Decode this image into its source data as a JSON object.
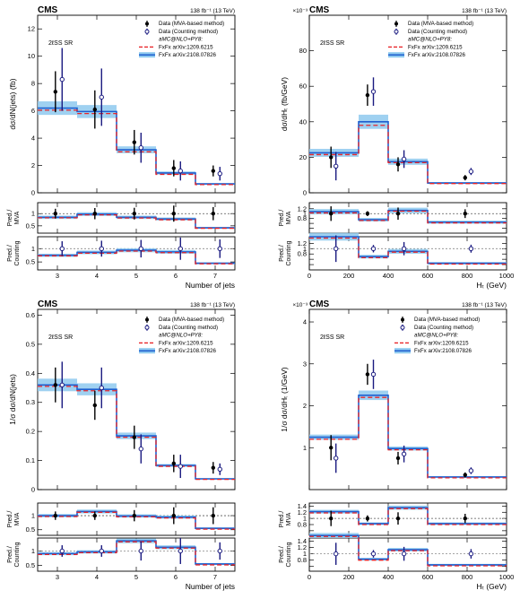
{
  "colors": {
    "mva_marker": "#000000",
    "counting_marker": "#1a1a80",
    "fxfx_2209": "#e8262a",
    "fxfx_2108": "#1f5fcf",
    "fxfx_2108_band": "#8ec9ef",
    "ratio_reference": "#888888"
  },
  "legend": {
    "items": [
      {
        "label": "Data (MVA-based method)",
        "symbol": "filled-circle"
      },
      {
        "label": "Data (Counting method)",
        "symbol": "open-circle"
      },
      {
        "label": "aMC@NLO+PY8:",
        "symbol": "none"
      },
      {
        "label": "FxFx arXiv:1209.6215",
        "symbol": "dashed-line"
      },
      {
        "label": "FxFx arXiv:2108.07826",
        "symbol": "band"
      }
    ]
  },
  "ratio_labels": {
    "mva": "Pred./ MVA",
    "counting": "Pred./ Counting"
  },
  "chart_data": [
    {
      "id": "p1",
      "type": "histogram-with-ratio",
      "cms": "CMS",
      "lumi": "138 fb⁻¹ (13 TeV)",
      "region": "2ℓSS SR",
      "ylabel": "dσ/dN(jets) (fb)",
      "xlabel": "Number of jets",
      "xlim": [
        2.5,
        7.5
      ],
      "ylim": [
        0,
        13
      ],
      "log": false,
      "xticks": [
        3,
        4,
        5,
        6,
        7
      ],
      "xticklabels": [
        "3",
        "4",
        "5",
        "6",
        "7"
      ],
      "yticks": [
        0,
        2,
        4,
        6,
        8,
        10,
        12
      ],
      "yticklabels": [
        "0",
        "2",
        "4",
        "6",
        "8",
        "10",
        "12"
      ],
      "bins": [
        2.5,
        3.5,
        4.5,
        5.5,
        6.5,
        7.5
      ],
      "pred_2209": [
        6.05,
        5.8,
        3.0,
        1.35,
        0.6
      ],
      "pred_2108": [
        6.2,
        5.95,
        3.15,
        1.45,
        0.65
      ],
      "band_rel": 0.08,
      "data_mva": {
        "x": [
          2.95,
          3.95,
          4.95,
          5.95,
          6.95
        ],
        "y": [
          7.4,
          6.1,
          3.7,
          1.8,
          1.6
        ],
        "err": [
          1.5,
          1.4,
          0.9,
          0.6,
          0.4
        ]
      },
      "data_counting": {
        "x": [
          3.12,
          4.12,
          5.12,
          6.12,
          7.12
        ],
        "y": [
          8.3,
          7.0,
          3.3,
          1.6,
          1.4
        ],
        "err": [
          2.3,
          2.1,
          1.1,
          0.7,
          0.5
        ]
      },
      "ratio_mva": {
        "ylim": [
          0.2,
          1.45
        ],
        "ticks": [
          0.5,
          1
        ],
        "ticklabels": [
          "0.5",
          "1"
        ],
        "pred_2209": [
          0.83,
          0.95,
          0.82,
          0.75,
          0.4
        ],
        "pred_2108": [
          0.85,
          0.98,
          0.85,
          0.78,
          0.42
        ],
        "data_y": [
          1.0,
          1.0,
          1.0,
          1.0,
          1.0
        ],
        "data_err": [
          0.2,
          0.23,
          0.24,
          0.33,
          0.27
        ]
      },
      "ratio_counting": {
        "ylim": [
          0.2,
          1.45
        ],
        "ticks": [
          0.5,
          1
        ],
        "ticklabels": [
          "0.5",
          "1"
        ],
        "pred_2209": [
          0.73,
          0.83,
          0.91,
          0.85,
          0.43
        ],
        "pred_2108": [
          0.75,
          0.86,
          0.94,
          0.88,
          0.45
        ],
        "data_y": [
          1.0,
          1.0,
          1.0,
          1.0,
          1.0
        ],
        "data_err": [
          0.28,
          0.3,
          0.33,
          0.42,
          0.35
        ]
      }
    },
    {
      "id": "p2",
      "type": "histogram-with-ratio",
      "cms": "CMS",
      "lumi": "138 fb⁻¹ (13 TeV)",
      "exponent": "×10⁻³",
      "region": "2ℓSS SR",
      "ylabel": "dσ/dHₜ (fb/GeV)",
      "xlabel": "Hₜ (GeV)",
      "xlim": [
        0,
        1000
      ],
      "ylim": [
        0,
        100
      ],
      "log": false,
      "xticks": [
        0,
        200,
        400,
        600,
        800,
        1000
      ],
      "xticklabels": [
        "0",
        "200",
        "400",
        "600",
        "800",
        "1000"
      ],
      "yticks": [
        0,
        20,
        40,
        60,
        80
      ],
      "yticklabels": [
        "0",
        "20",
        "40",
        "60",
        "80"
      ],
      "bins": [
        0,
        250,
        400,
        600,
        1000
      ],
      "pred_2209": [
        21.5,
        38.0,
        17.0,
        5.2
      ],
      "pred_2108": [
        22.5,
        40.0,
        17.5,
        5.5
      ],
      "band_rel": 0.1,
      "data_mva": {
        "x": [
          110,
          295,
          450,
          790
        ],
        "y": [
          20.0,
          55.0,
          16.0,
          8.5
        ],
        "err": [
          6,
          6,
          4,
          1.5
        ]
      },
      "data_counting": {
        "x": [
          135,
          325,
          480,
          820
        ],
        "y": [
          15.0,
          57.0,
          19.0,
          12.0
        ],
        "err": [
          8,
          8,
          5,
          2
        ]
      },
      "ratio_mva": {
        "ylim": [
          0.2,
          1.45
        ],
        "ticks": [
          0.4,
          0.6,
          0.8,
          1,
          1.2
        ],
        "ticklabels": [
          "",
          "",
          "0.8",
          "1",
          "1.2"
        ],
        "pred_2209": [
          1.03,
          0.72,
          1.1,
          0.62
        ],
        "pred_2108": [
          1.08,
          0.75,
          1.13,
          0.65
        ],
        "data_y": [
          1.0,
          1.0,
          1.0,
          1.0
        ],
        "data_err": [
          0.3,
          0.1,
          0.25,
          0.18
        ]
      },
      "ratio_counting": {
        "ylim": [
          0.2,
          1.45
        ],
        "ticks": [
          0.4,
          0.6,
          0.8,
          1,
          1.2
        ],
        "ticklabels": [
          "",
          "",
          "0.8",
          "1",
          "1.2"
        ],
        "pred_2209": [
          1.4,
          0.66,
          0.87,
          0.42
        ],
        "pred_2108": [
          1.45,
          0.7,
          0.9,
          0.45
        ],
        "data_y": [
          1.0,
          1.0,
          1.0,
          1.0
        ],
        "data_err": [
          0.5,
          0.14,
          0.25,
          0.15
        ]
      }
    },
    {
      "id": "p3",
      "type": "histogram-with-ratio",
      "cms": "CMS",
      "lumi": "138 fb⁻¹ (13 TeV)",
      "region": "2ℓSS SR",
      "ylabel": "1/σ dσ/dN(jets)",
      "xlabel": "Number of jets",
      "xlim": [
        2.5,
        7.5
      ],
      "ylim": [
        0,
        0.62
      ],
      "log": false,
      "xticks": [
        3,
        4,
        5,
        6,
        7
      ],
      "xticklabels": [
        "3",
        "4",
        "5",
        "6",
        "7"
      ],
      "yticks": [
        0,
        0.1,
        0.2,
        0.3,
        0.4,
        0.5,
        0.6
      ],
      "yticklabels": [
        "0",
        "0.1",
        "0.2",
        "0.3",
        "0.4",
        "0.5",
        "0.6"
      ],
      "bins": [
        2.5,
        3.5,
        4.5,
        5.5,
        6.5,
        7.5
      ],
      "pred_2209": [
        0.355,
        0.34,
        0.18,
        0.08,
        0.035
      ],
      "pred_2108": [
        0.36,
        0.345,
        0.185,
        0.083,
        0.037
      ],
      "band_rel": 0.06,
      "data_mva": {
        "x": [
          2.95,
          3.95,
          4.95,
          5.95,
          6.95
        ],
        "y": [
          0.36,
          0.29,
          0.18,
          0.09,
          0.075
        ],
        "err": [
          0.06,
          0.05,
          0.04,
          0.03,
          0.02
        ]
      },
      "data_counting": {
        "x": [
          3.12,
          4.12,
          5.12,
          6.12,
          7.12
        ],
        "y": [
          0.36,
          0.35,
          0.14,
          0.08,
          0.07
        ],
        "err": [
          0.08,
          0.07,
          0.05,
          0.04,
          0.02
        ]
      },
      "ratio_mva": {
        "ylim": [
          0.3,
          1.45
        ],
        "ticks": [
          0.5,
          1
        ],
        "ticklabels": [
          "0.5",
          "1"
        ],
        "pred_2209": [
          0.97,
          1.12,
          0.96,
          0.92,
          0.52
        ],
        "pred_2108": [
          1.0,
          1.15,
          0.99,
          0.95,
          0.55
        ],
        "data_y": [
          1.0,
          1.0,
          1.0,
          1.0,
          1.0
        ],
        "data_err": [
          0.15,
          0.15,
          0.2,
          0.3,
          0.3
        ]
      },
      "ratio_counting": {
        "ylim": [
          0.3,
          1.45
        ],
        "ticks": [
          0.5,
          1
        ],
        "ticklabels": [
          "0.5",
          "1"
        ],
        "pred_2209": [
          0.88,
          0.94,
          1.32,
          1.1,
          0.52
        ],
        "pred_2108": [
          0.91,
          0.97,
          1.35,
          1.13,
          0.55
        ],
        "data_y": [
          1.0,
          1.0,
          1.0,
          1.0,
          1.0
        ],
        "data_err": [
          0.2,
          0.2,
          0.33,
          0.45,
          0.3
        ]
      }
    },
    {
      "id": "p4",
      "type": "histogram-with-ratio",
      "cms": "CMS",
      "lumi": "138 fb⁻¹ (13 TeV)",
      "exponent": "×10⁻³",
      "region": "2ℓSS SR",
      "ylabel": "1/σ dσ/dHₜ (1/GeV)",
      "xlabel": "Hₜ (GeV)",
      "xlim": [
        0,
        1000
      ],
      "ylim": [
        0,
        4.3
      ],
      "log": false,
      "xticks": [
        0,
        200,
        400,
        600,
        800,
        1000
      ],
      "xticklabels": [
        "0",
        "200",
        "400",
        "600",
        "800",
        "1000"
      ],
      "yticks": [
        1,
        2,
        3,
        4
      ],
      "yticklabels": [
        "1",
        "2",
        "3",
        "4"
      ],
      "bins": [
        0,
        250,
        400,
        600,
        1000
      ],
      "pred_2209": [
        1.2,
        2.2,
        0.95,
        0.28
      ],
      "pred_2108": [
        1.25,
        2.25,
        0.98,
        0.3
      ],
      "band_rel": 0.05,
      "data_mva": {
        "x": [
          110,
          295,
          450,
          790
        ],
        "y": [
          1.0,
          2.75,
          0.75,
          0.35
        ],
        "err": [
          0.3,
          0.25,
          0.15,
          0.06
        ]
      },
      "data_counting": {
        "x": [
          135,
          325,
          480,
          820
        ],
        "y": [
          0.75,
          2.75,
          0.85,
          0.45
        ],
        "err": [
          0.35,
          0.35,
          0.2,
          0.08
        ]
      },
      "ratio_mva": {
        "ylim": [
          0.45,
          1.5
        ],
        "ticks": [
          0.6,
          0.8,
          1,
          1.2,
          1.4
        ],
        "ticklabels": [
          "",
          "0.8",
          "1",
          "1.2",
          "1.4"
        ],
        "pred_2209": [
          1.18,
          0.8,
          1.32,
          0.8
        ],
        "pred_2108": [
          1.22,
          0.83,
          1.35,
          0.83
        ],
        "data_y": [
          1.0,
          1.0,
          1.0,
          1.0
        ],
        "data_err": [
          0.25,
          0.1,
          0.2,
          0.15
        ]
      },
      "ratio_counting": {
        "ylim": [
          0.45,
          1.5
        ],
        "ticks": [
          0.6,
          0.8,
          1,
          1.2,
          1.4
        ],
        "ticklabels": [
          "",
          "0.8",
          "1",
          "1.2",
          "1.4"
        ],
        "pred_2209": [
          1.55,
          0.8,
          1.1,
          0.62
        ],
        "pred_2108": [
          1.58,
          0.83,
          1.13,
          0.65
        ],
        "data_y": [
          1.0,
          1.0,
          1.0,
          1.0
        ],
        "data_err": [
          0.35,
          0.12,
          0.22,
          0.15
        ]
      }
    }
  ]
}
